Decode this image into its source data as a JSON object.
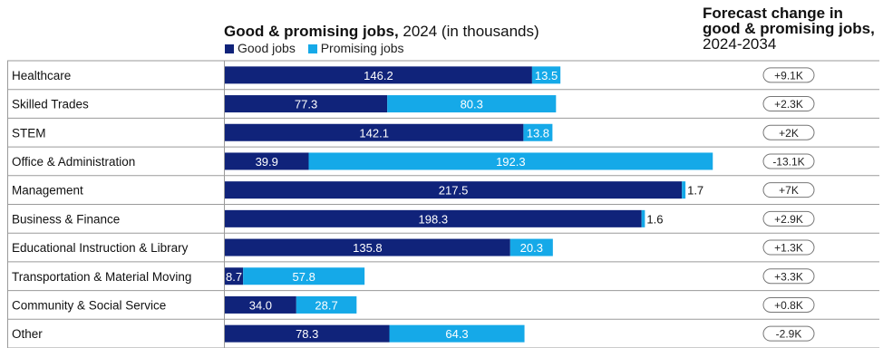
{
  "header": {
    "title_bold": "Good & promising jobs,",
    "title_rest": " 2024 (in thousands)",
    "legend_good": "Good jobs",
    "legend_promising": "Promising jobs",
    "forecast_line1": "Forecast change in",
    "forecast_line2": "good & promising jobs,",
    "forecast_line3": "2024-2034"
  },
  "colors": {
    "good": "#10237A",
    "promising": "#15A9E8"
  },
  "chart_data": {
    "type": "bar",
    "stacked": true,
    "orientation": "horizontal",
    "categories": [
      "Healthcare",
      "Skilled Trades",
      "STEM",
      "Office & Administration",
      "Management",
      "Business & Finance",
      "Educational Instruction & Library",
      "Transportation & Material Moving",
      "Community & Social Service",
      "Other"
    ],
    "series": [
      {
        "name": "Good jobs",
        "values": [
          146.2,
          77.3,
          142.1,
          39.9,
          217.5,
          198.3,
          135.8,
          8.7,
          34.0,
          78.3
        ],
        "labels": [
          "146.2",
          "77.3",
          "142.1",
          "39.9",
          "217.5",
          "198.3",
          "135.8",
          "8.7",
          "34.0",
          "78.3"
        ]
      },
      {
        "name": "Promising jobs",
        "values": [
          13.5,
          80.3,
          13.8,
          192.3,
          1.7,
          1.6,
          20.3,
          57.8,
          28.7,
          64.3
        ],
        "labels": [
          "13.5",
          "80.3",
          "13.8",
          "192.3",
          "1.7",
          "1.6",
          "20.3",
          "57.8",
          "28.7",
          "64.3"
        ]
      }
    ],
    "forecast_change": [
      "+9.1K",
      "+2.3K",
      "+2K",
      "-13.1K",
      "+7K",
      "+2.9K",
      "+1.3K",
      "+3.3K",
      "+0.8K",
      "-2.9K"
    ],
    "xlim": [
      0,
      250
    ]
  }
}
